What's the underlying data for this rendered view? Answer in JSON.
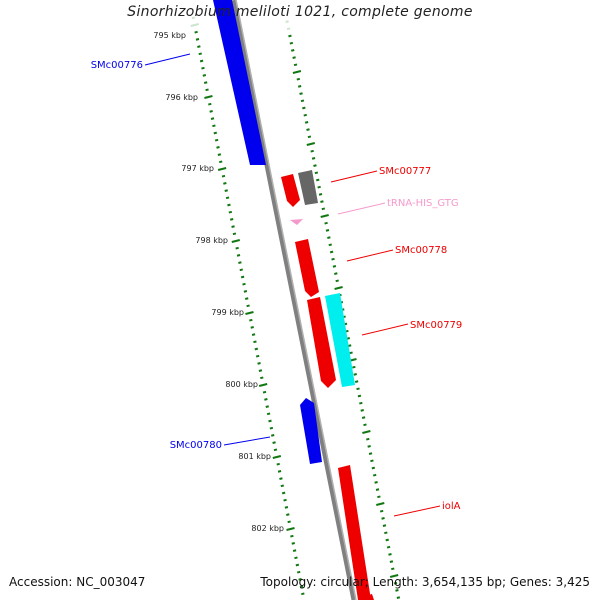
{
  "title": "Sinorhizobium meliloti 1021, complete genome",
  "footer": {
    "accession": "Accession: NC_003047",
    "summary": "Topology: circular; Length: 3,654,135 bp; Genes: 3,425"
  },
  "ticks": [
    "795 kbp",
    "796 kbp",
    "797 kbp",
    "798 kbp",
    "799 kbp",
    "800 kbp",
    "801 kbp",
    "802 kbp"
  ],
  "genes": [
    {
      "name": "SMc00776",
      "color": "#0000ee",
      "strand": "-"
    },
    {
      "name": "SMc00777",
      "color": "#ee0000",
      "strand": "+"
    },
    {
      "name": "tRNA-HIS_GTG",
      "color": "#f599cc",
      "strand": "+"
    },
    {
      "name": "SMc00778",
      "color": "#ee0000",
      "strand": "+"
    },
    {
      "name": "SMc00779",
      "color": "#ee0000",
      "strand": "+"
    },
    {
      "name": "SMc00780",
      "color": "#0000ee",
      "strand": "-"
    },
    {
      "name": "iolA",
      "color": "#ee0000",
      "strand": "+"
    }
  ],
  "colors": {
    "backbone": "#808080",
    "tick": "#117711",
    "cds_gray": "#666666",
    "cds_cyan": "#00eeee"
  }
}
